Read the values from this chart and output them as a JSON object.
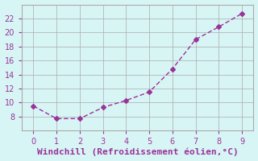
{
  "x": [
    0,
    1,
    2,
    3,
    4,
    5,
    6,
    7,
    8,
    9
  ],
  "y": [
    9.5,
    7.7,
    7.7,
    9.3,
    10.3,
    11.5,
    14.8,
    19.0,
    20.8,
    22.7
  ],
  "xlabel": "Windchill (Refroidissement éolien,°C)",
  "line_color": "#993399",
  "marker": "D",
  "marker_size": 3,
  "background_color": "#d8f5f5",
  "grid_color": "#aaaaaa",
  "xlim": [
    -0.5,
    9.5
  ],
  "ylim": [
    6,
    24
  ],
  "xticks": [
    0,
    1,
    2,
    3,
    4,
    5,
    6,
    7,
    8,
    9
  ],
  "yticks": [
    8,
    10,
    12,
    14,
    16,
    18,
    20,
    22
  ],
  "xlabel_fontsize": 8,
  "tick_fontsize": 7,
  "tick_color": "#993399",
  "label_color": "#993399"
}
